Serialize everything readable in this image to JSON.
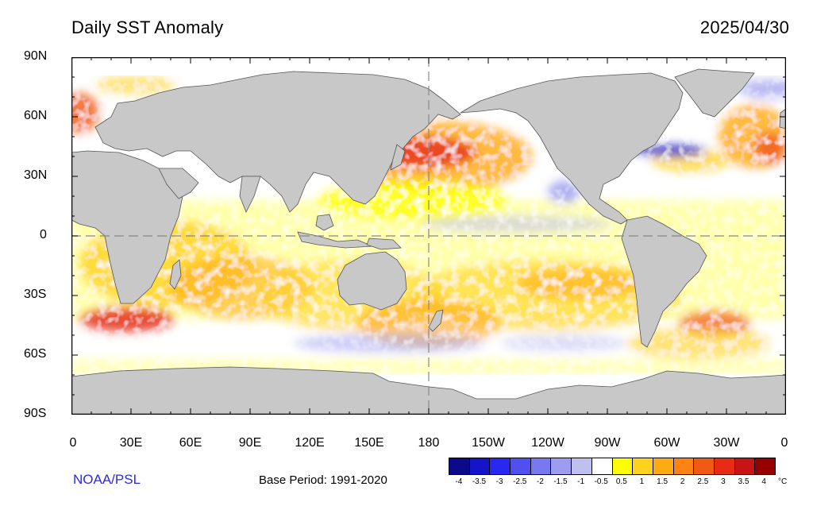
{
  "header": {
    "title": "Daily SST Anomaly",
    "date": "2025/04/30"
  },
  "map": {
    "projection": "cylindrical-equidistant",
    "lon_range": [
      0,
      360
    ],
    "lat_range": [
      -90,
      90
    ],
    "land_color": "#c8c8c8",
    "coastline_color": "#444444",
    "reference_line_color": "#888888",
    "lat_labels": [
      "90N",
      "60N",
      "30N",
      "0",
      "30S",
      "60S",
      "90S"
    ],
    "lon_labels": [
      "0",
      "30E",
      "60E",
      "90E",
      "120E",
      "150E",
      "180",
      "150W",
      "120W",
      "90W",
      "60W",
      "30W",
      "0"
    ]
  },
  "colorbar": {
    "colors": [
      "#0a0a8a",
      "#1414c8",
      "#2828f0",
      "#5050f0",
      "#7878f0",
      "#9c9cf0",
      "#c0c0f0",
      "#ffffff",
      "#ffff00",
      "#ffd21e",
      "#ffaa14",
      "#ff8214",
      "#f05a14",
      "#e62d14",
      "#c81414",
      "#960000"
    ],
    "ticks": [
      "-4",
      "-3.5",
      "-3",
      "-2.5",
      "-2",
      "-1.5",
      "-1",
      "-0.5",
      "0.5",
      "1",
      "1.5",
      "2",
      "2.5",
      "3",
      "3.5",
      "4"
    ],
    "unit": "°C"
  },
  "footer": {
    "credit": "NOAA/PSL",
    "base_period": "Base Period: 1991-2020"
  }
}
